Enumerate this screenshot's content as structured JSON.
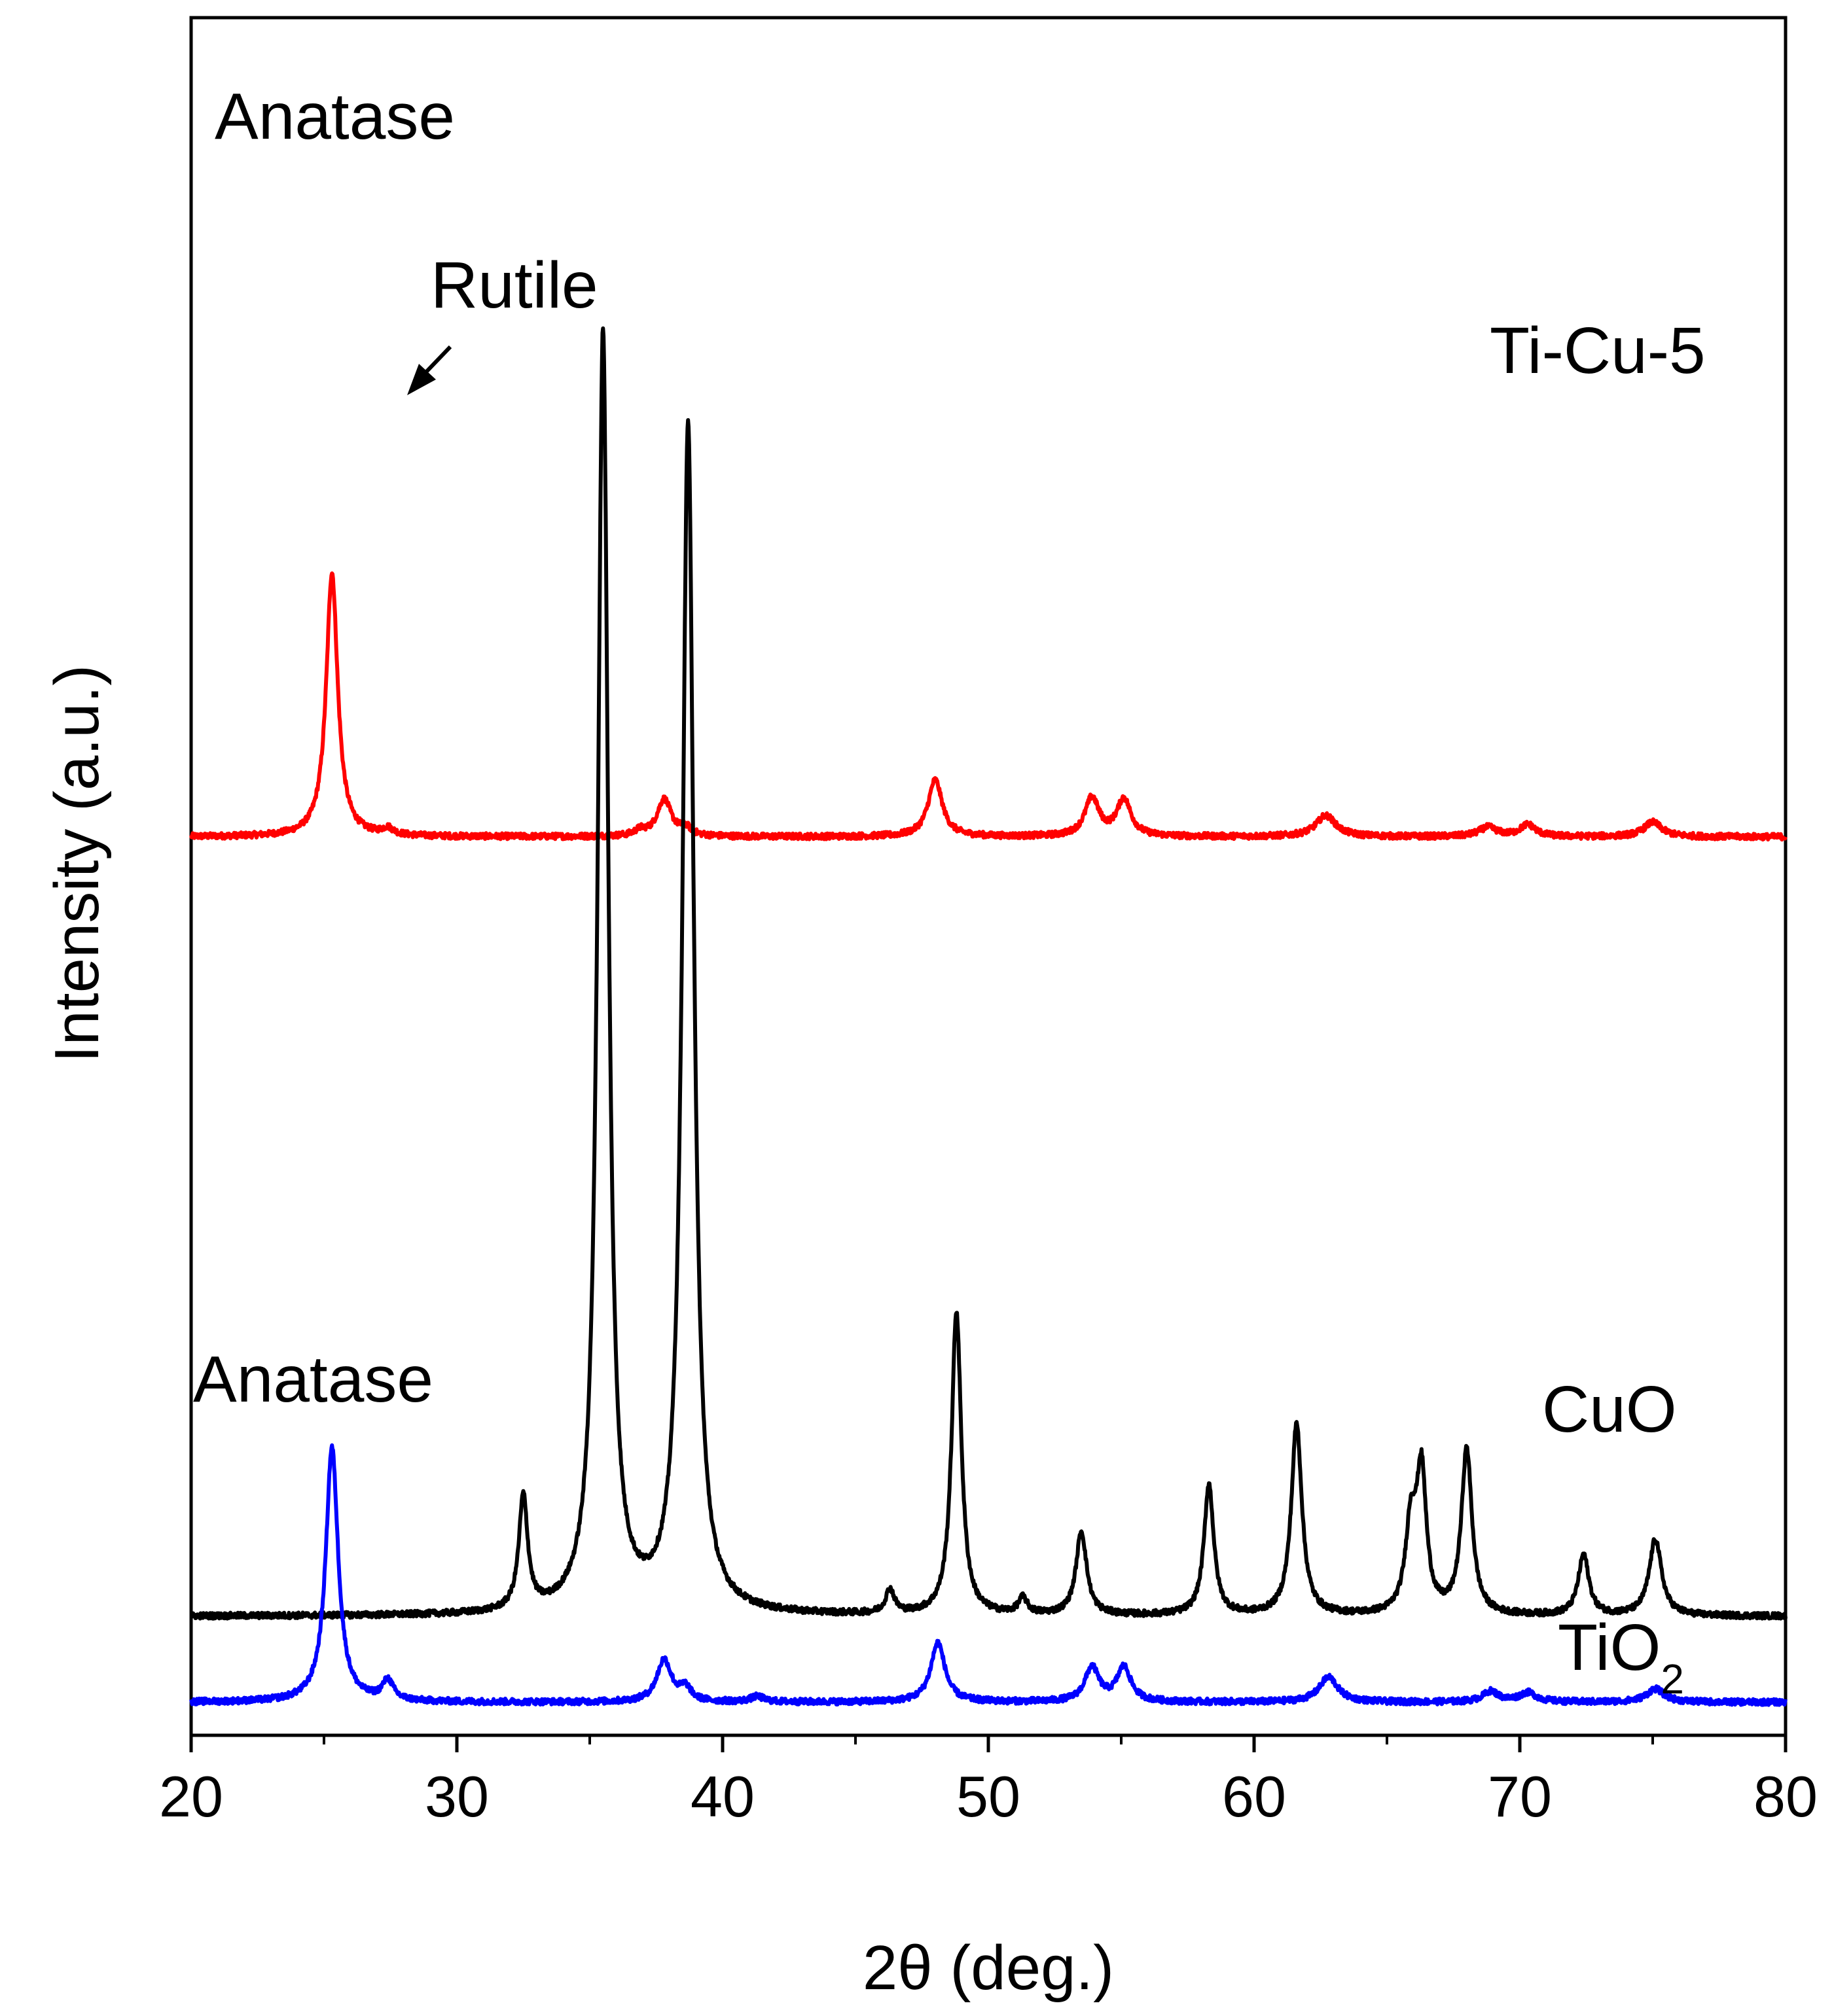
{
  "chart_data": {
    "type": "line",
    "title": "",
    "xlabel": "2θ (deg.)",
    "ylabel": "Intensity (a.u.)",
    "xlim": [
      20,
      80
    ],
    "x_ticks": [
      20,
      30,
      40,
      50,
      60,
      70,
      80
    ],
    "y_ticks_shown": false,
    "grid": false,
    "legend": "none",
    "series": [
      {
        "name": "Ti-Cu-5",
        "color": "#ff0000",
        "offset": 68,
        "peaks": [
          {
            "x": 25.3,
            "h": 20.0,
            "w": 0.26
          },
          {
            "x": 27.4,
            "h": 0.5,
            "w": 0.25
          },
          {
            "x": 36.9,
            "h": 0.4,
            "w": 0.25
          },
          {
            "x": 37.8,
            "h": 2.8,
            "w": 0.32
          },
          {
            "x": 38.6,
            "h": 0.6,
            "w": 0.25
          },
          {
            "x": 48.0,
            "h": 4.3,
            "w": 0.32
          },
          {
            "x": 53.9,
            "h": 2.9,
            "w": 0.32
          },
          {
            "x": 55.1,
            "h": 2.8,
            "w": 0.32
          },
          {
            "x": 62.7,
            "h": 1.6,
            "w": 0.45
          },
          {
            "x": 68.8,
            "h": 0.7,
            "w": 0.4
          },
          {
            "x": 70.3,
            "h": 0.9,
            "w": 0.35
          },
          {
            "x": 75.0,
            "h": 1.1,
            "w": 0.4
          }
        ]
      },
      {
        "name": "CuO",
        "color": "#000000",
        "offset": 9,
        "peaks": [
          {
            "x": 32.5,
            "h": 8.6,
            "w": 0.2
          },
          {
            "x": 35.5,
            "h": 97.0,
            "w": 0.24
          },
          {
            "x": 38.7,
            "h": 90.0,
            "w": 0.26
          },
          {
            "x": 46.3,
            "h": 1.8,
            "w": 0.2
          },
          {
            "x": 48.8,
            "h": 23.0,
            "w": 0.22
          },
          {
            "x": 51.3,
            "h": 1.2,
            "w": 0.2
          },
          {
            "x": 53.5,
            "h": 6.3,
            "w": 0.24
          },
          {
            "x": 58.3,
            "h": 9.9,
            "w": 0.22
          },
          {
            "x": 61.6,
            "h": 14.5,
            "w": 0.24
          },
          {
            "x": 65.9,
            "h": 6.5,
            "w": 0.24
          },
          {
            "x": 66.3,
            "h": 10.4,
            "w": 0.22
          },
          {
            "x": 68.0,
            "h": 12.5,
            "w": 0.24
          },
          {
            "x": 72.4,
            "h": 4.6,
            "w": 0.24
          },
          {
            "x": 75.1,
            "h": 5.8,
            "w": 0.28
          }
        ]
      },
      {
        "name": "TiO₂",
        "color": "#0000ff",
        "offset": 2.5,
        "peaks": [
          {
            "x": 25.3,
            "h": 19.3,
            "w": 0.28
          },
          {
            "x": 27.4,
            "h": 1.5,
            "w": 0.25
          },
          {
            "x": 37.8,
            "h": 3.2,
            "w": 0.33
          },
          {
            "x": 38.6,
            "h": 1.0,
            "w": 0.25
          },
          {
            "x": 41.3,
            "h": 0.4,
            "w": 0.3
          },
          {
            "x": 48.1,
            "h": 4.5,
            "w": 0.32
          },
          {
            "x": 53.9,
            "h": 2.6,
            "w": 0.32
          },
          {
            "x": 55.1,
            "h": 2.6,
            "w": 0.32
          },
          {
            "x": 62.8,
            "h": 1.9,
            "w": 0.42
          },
          {
            "x": 68.9,
            "h": 0.8,
            "w": 0.35
          },
          {
            "x": 70.3,
            "h": 0.7,
            "w": 0.4
          },
          {
            "x": 75.1,
            "h": 1.0,
            "w": 0.4
          }
        ]
      }
    ],
    "annotations": {
      "anatase_top": "Anatase",
      "rutile": "Rutile",
      "anatase_bottom": "Anatase",
      "label_ticu": "Ti-Cu-5",
      "label_cuo": "CuO",
      "label_tio2_main": "TiO",
      "label_tio2_sub": "2"
    }
  }
}
